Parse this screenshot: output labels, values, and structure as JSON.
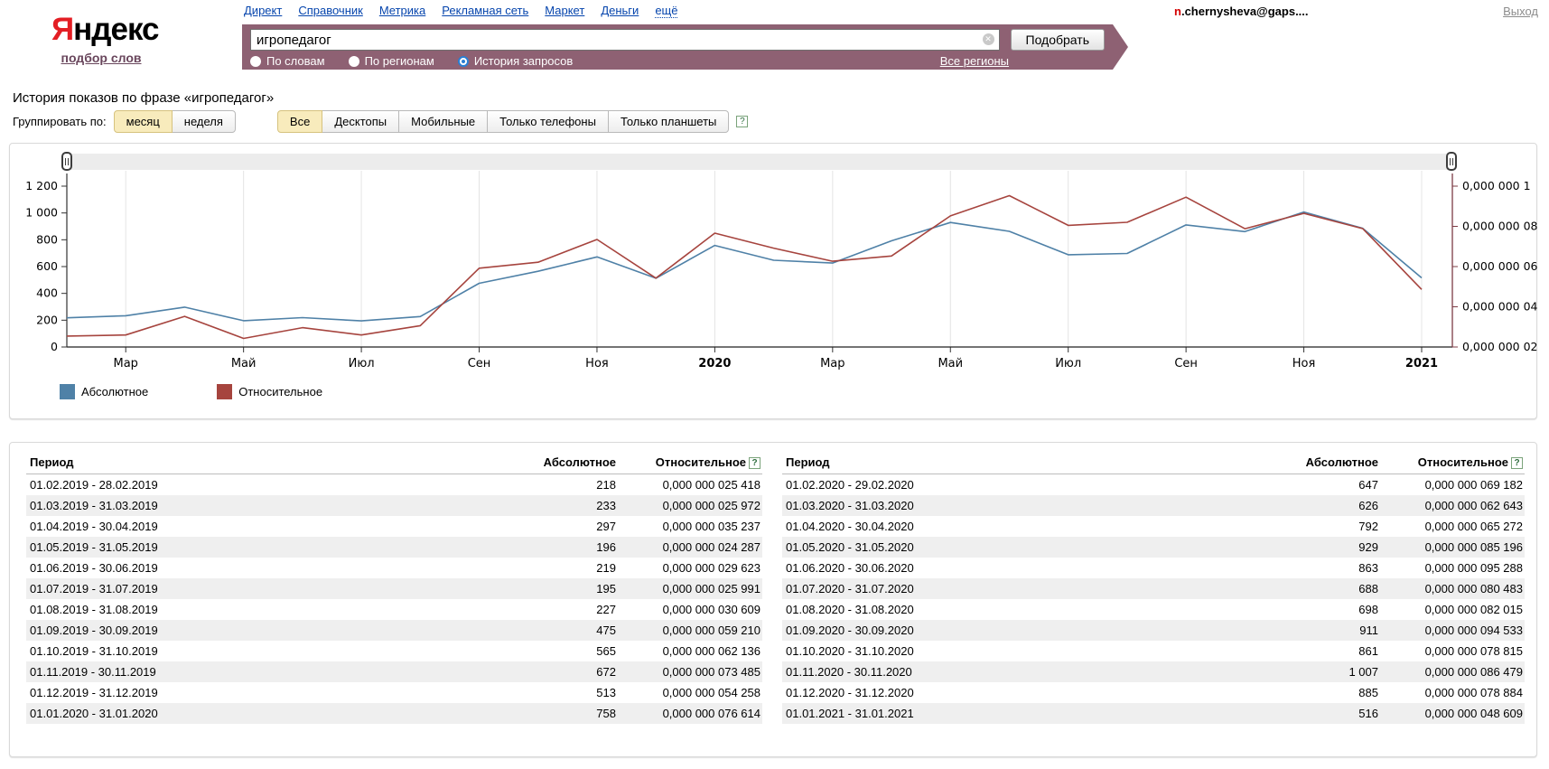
{
  "icons": {
    "help": "?",
    "clear": "✕"
  },
  "colors": {
    "banner": "#8e6173",
    "absolute_series": "#4f81a7",
    "relative_series": "#a6443e",
    "logo_red": "#e31e24",
    "selected_button_bg": "#f8ebbc",
    "alt_row_bg": "#efefef"
  },
  "header": {
    "logo_first": "Я",
    "logo_rest": "ндекс",
    "logo_sub": "подбор слов",
    "nav": [
      {
        "label": "Директ"
      },
      {
        "label": "Справочник"
      },
      {
        "label": "Метрика"
      },
      {
        "label": "Рекламная сеть"
      },
      {
        "label": "Маркет"
      },
      {
        "label": "Деньги"
      },
      {
        "label": "ещё",
        "dotted": true
      }
    ],
    "user_email_prefix": "n",
    "user_email_rest": ".chernysheva@gaps....",
    "logout": "Выход"
  },
  "search": {
    "query": "игропедагог",
    "submit_label": "Подобрать",
    "modes": [
      {
        "label": "По словам",
        "selected": false
      },
      {
        "label": "По регионам",
        "selected": false
      },
      {
        "label": "История запросов",
        "selected": true
      }
    ],
    "regions_link": "Все регионы"
  },
  "page": {
    "title": "История показов по фразе «игропедагог»"
  },
  "controls": {
    "group_label": "Группировать по:",
    "group_options": [
      {
        "label": "месяц",
        "selected": true
      },
      {
        "label": "неделя",
        "selected": false
      }
    ],
    "device_options": [
      {
        "label": "Все",
        "selected": true
      },
      {
        "label": "Десктопы",
        "selected": false
      },
      {
        "label": "Мобильные",
        "selected": false
      },
      {
        "label": "Только телефоны",
        "selected": false
      },
      {
        "label": "Только планшеты",
        "selected": false
      }
    ]
  },
  "chart_data": {
    "type": "line",
    "x": [
      "02.2019",
      "03.2019",
      "04.2019",
      "05.2019",
      "06.2019",
      "07.2019",
      "08.2019",
      "09.2019",
      "10.2019",
      "11.2019",
      "12.2019",
      "01.2020",
      "02.2020",
      "03.2020",
      "04.2020",
      "05.2020",
      "06.2020",
      "07.2020",
      "08.2020",
      "09.2020",
      "10.2020",
      "11.2020",
      "12.2020",
      "01.2021"
    ],
    "x_labels": [
      {
        "i": 1,
        "label": "Мар"
      },
      {
        "i": 3,
        "label": "Май"
      },
      {
        "i": 5,
        "label": "Июл"
      },
      {
        "i": 7,
        "label": "Сен"
      },
      {
        "i": 9,
        "label": "Ноя"
      },
      {
        "i": 11,
        "label": "2020",
        "bold": true
      },
      {
        "i": 13,
        "label": "Мар"
      },
      {
        "i": 15,
        "label": "Май"
      },
      {
        "i": 17,
        "label": "Июл"
      },
      {
        "i": 19,
        "label": "Сен"
      },
      {
        "i": 21,
        "label": "Ноя"
      },
      {
        "i": 23,
        "label": "2021",
        "bold": true
      }
    ],
    "left_axis": {
      "min": 0,
      "max": 1200,
      "ticks": [
        "0",
        "200",
        "400",
        "600",
        "800",
        "1 000",
        "1 200"
      ]
    },
    "right_axis": {
      "min": 2e-08,
      "max": 1e-07,
      "color": "#7d3c45",
      "ticks": [
        "0,000 000 02",
        "0,000 000 04",
        "0,000 000 06",
        "0,000 000 08",
        "0,000 000 1"
      ]
    },
    "series": [
      {
        "name": "Абсолютное",
        "color": "#4f81a7",
        "axis": "left",
        "values": [
          218,
          233,
          297,
          196,
          219,
          195,
          227,
          475,
          565,
          672,
          513,
          758,
          647,
          626,
          792,
          929,
          863,
          688,
          698,
          911,
          861,
          1007,
          885,
          516
        ]
      },
      {
        "name": "Относительное",
        "color": "#a6443e",
        "axis": "right",
        "values": [
          2.5418e-08,
          2.5972e-08,
          3.5237e-08,
          2.4287e-08,
          2.9623e-08,
          2.5991e-08,
          3.0609e-08,
          5.921e-08,
          6.2136e-08,
          7.3485e-08,
          5.4258e-08,
          7.6614e-08,
          6.9182e-08,
          6.2643e-08,
          6.5272e-08,
          8.5196e-08,
          9.5288e-08,
          8.0483e-08,
          8.2015e-08,
          9.4533e-08,
          7.8815e-08,
          8.6479e-08,
          7.8884e-08,
          4.8609e-08
        ]
      }
    ],
    "grid": true,
    "legend_position": "bottom-left"
  },
  "tables": [
    {
      "headers": {
        "period": "Период",
        "absolute": "Абсолютное",
        "relative": "Относительное"
      },
      "rows": [
        {
          "period": "01.02.2019 - 28.02.2019",
          "absolute": "218",
          "relative": "0,000 000 025 418"
        },
        {
          "period": "01.03.2019 - 31.03.2019",
          "absolute": "233",
          "relative": "0,000 000 025 972"
        },
        {
          "period": "01.04.2019 - 30.04.2019",
          "absolute": "297",
          "relative": "0,000 000 035 237"
        },
        {
          "period": "01.05.2019 - 31.05.2019",
          "absolute": "196",
          "relative": "0,000 000 024 287"
        },
        {
          "period": "01.06.2019 - 30.06.2019",
          "absolute": "219",
          "relative": "0,000 000 029 623"
        },
        {
          "period": "01.07.2019 - 31.07.2019",
          "absolute": "195",
          "relative": "0,000 000 025 991"
        },
        {
          "period": "01.08.2019 - 31.08.2019",
          "absolute": "227",
          "relative": "0,000 000 030 609"
        },
        {
          "period": "01.09.2019 - 30.09.2019",
          "absolute": "475",
          "relative": "0,000 000 059 210"
        },
        {
          "period": "01.10.2019 - 31.10.2019",
          "absolute": "565",
          "relative": "0,000 000 062 136"
        },
        {
          "period": "01.11.2019 - 30.11.2019",
          "absolute": "672",
          "relative": "0,000 000 073 485"
        },
        {
          "period": "01.12.2019 - 31.12.2019",
          "absolute": "513",
          "relative": "0,000 000 054 258"
        },
        {
          "period": "01.01.2020 - 31.01.2020",
          "absolute": "758",
          "relative": "0,000 000 076 614"
        }
      ]
    },
    {
      "headers": {
        "period": "Период",
        "absolute": "Абсолютное",
        "relative": "Относительное"
      },
      "rows": [
        {
          "period": "01.02.2020 - 29.02.2020",
          "absolute": "647",
          "relative": "0,000 000 069 182"
        },
        {
          "period": "01.03.2020 - 31.03.2020",
          "absolute": "626",
          "relative": "0,000 000 062 643"
        },
        {
          "period": "01.04.2020 - 30.04.2020",
          "absolute": "792",
          "relative": "0,000 000 065 272"
        },
        {
          "period": "01.05.2020 - 31.05.2020",
          "absolute": "929",
          "relative": "0,000 000 085 196"
        },
        {
          "period": "01.06.2020 - 30.06.2020",
          "absolute": "863",
          "relative": "0,000 000 095 288"
        },
        {
          "period": "01.07.2020 - 31.07.2020",
          "absolute": "688",
          "relative": "0,000 000 080 483"
        },
        {
          "period": "01.08.2020 - 31.08.2020",
          "absolute": "698",
          "relative": "0,000 000 082 015"
        },
        {
          "period": "01.09.2020 - 30.09.2020",
          "absolute": "911",
          "relative": "0,000 000 094 533"
        },
        {
          "period": "01.10.2020 - 31.10.2020",
          "absolute": "861",
          "relative": "0,000 000 078 815"
        },
        {
          "period": "01.11.2020 - 30.11.2020",
          "absolute": "1 007",
          "relative": "0,000 000 086 479"
        },
        {
          "period": "01.12.2020 - 31.12.2020",
          "absolute": "885",
          "relative": "0,000 000 078 884"
        },
        {
          "period": "01.01.2021 - 31.01.2021",
          "absolute": "516",
          "relative": "0,000 000 048 609"
        }
      ]
    }
  ]
}
